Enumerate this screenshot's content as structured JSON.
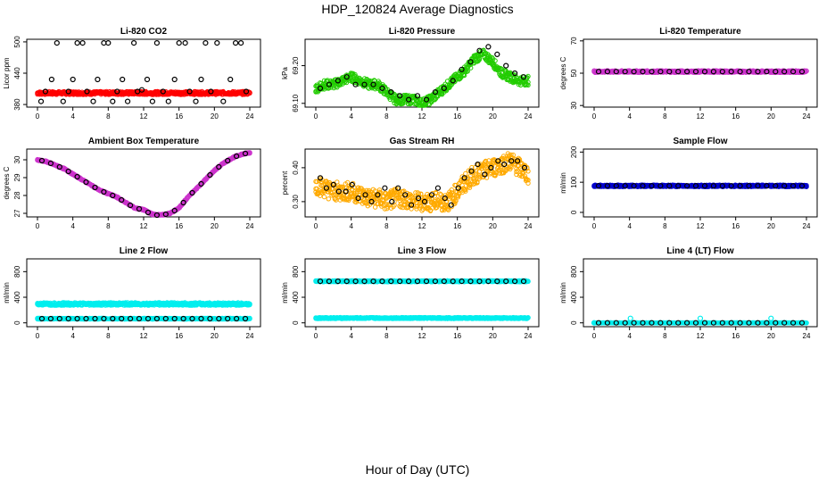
{
  "figure": {
    "title": "HDP_120824  Average Diagnostics",
    "xlabel": "Hour of Day (UTC)"
  },
  "colors": {
    "black": "#000000",
    "red": "#ff0000",
    "green": "#22cc00",
    "magenta": "#cc33cc",
    "orange": "#ffaa00",
    "blue": "#0000cc",
    "cyan": "#00eeee"
  },
  "chart_data": [
    {
      "type": "scatter",
      "title": "Li-820 CO2",
      "ylabel": "Licor ppm",
      "xlim": [
        0,
        24
      ],
      "ylim": [
        375,
        505
      ],
      "xticks": [
        "0",
        "4",
        "8",
        "12",
        "16",
        "20",
        "24"
      ],
      "yticks": [
        "380",
        "440",
        "500"
      ],
      "series": [
        {
          "name": "minute",
          "color_key": "red",
          "kind": "band",
          "x": [
            0,
            24
          ],
          "y": [
            402,
            402
          ],
          "spread": 3
        },
        {
          "name": "hourly",
          "color_key": "black",
          "kind": "points",
          "x": [
            0.4,
            0.9,
            1.6,
            2.2,
            2.9,
            3.5,
            4.0,
            4.5,
            5.1,
            5.6,
            6.3,
            6.8,
            7.5,
            8.0,
            8.5,
            9.0,
            9.6,
            10.2,
            10.9,
            11.3,
            11.8,
            12.4,
            13.0,
            13.5,
            14.2,
            14.8,
            15.5,
            16.0,
            16.7,
            17.2,
            17.9,
            18.5,
            19.0,
            19.6,
            20.3,
            21.0,
            21.8,
            22.4,
            23.0,
            23.6
          ],
          "y": [
            386,
            405,
            428,
            498,
            386,
            405,
            428,
            498,
            498,
            405,
            386,
            428,
            498,
            498,
            386,
            405,
            428,
            386,
            498,
            405,
            408,
            428,
            386,
            498,
            405,
            386,
            428,
            498,
            498,
            405,
            386,
            428,
            498,
            405,
            498,
            386,
            428,
            498,
            498,
            405
          ]
        }
      ]
    },
    {
      "type": "scatter",
      "title": "Li-820 Pressure",
      "ylabel": "kPa",
      "xlim": [
        0,
        24
      ],
      "ylim": [
        69.09,
        69.27
      ],
      "xticks": [
        "0",
        "4",
        "8",
        "12",
        "16",
        "20",
        "24"
      ],
      "yticks": [
        "69.10",
        "69.20"
      ],
      "series": [
        {
          "name": "minute",
          "color_key": "green",
          "kind": "band",
          "x": [
            0,
            1,
            2,
            3,
            4,
            5,
            6,
            7,
            8,
            9,
            10,
            11,
            12,
            13,
            14,
            15,
            16,
            17,
            18,
            19,
            20,
            21,
            22,
            23,
            24
          ],
          "y": [
            69.14,
            69.15,
            69.15,
            69.16,
            69.17,
            69.16,
            69.15,
            69.15,
            69.13,
            69.11,
            69.11,
            69.11,
            69.1,
            69.11,
            69.13,
            69.15,
            69.17,
            69.19,
            69.22,
            69.23,
            69.21,
            69.18,
            69.17,
            69.16,
            69.16
          ],
          "spread": 0.012
        },
        {
          "name": "hourly",
          "color_key": "black",
          "kind": "points",
          "x": [
            0.5,
            1.5,
            2.5,
            3.5,
            4.5,
            5.5,
            6.5,
            7.5,
            8.5,
            9.5,
            10.5,
            11.5,
            12.5,
            13.5,
            14.5,
            15.5,
            16.5,
            17.5,
            18.5,
            19.5,
            20.5,
            21.5,
            22.5,
            23.5
          ],
          "y": [
            69.14,
            69.15,
            69.16,
            69.17,
            69.15,
            69.15,
            69.15,
            69.14,
            69.13,
            69.12,
            69.11,
            69.12,
            69.11,
            69.13,
            69.14,
            69.16,
            69.19,
            69.21,
            69.24,
            69.25,
            69.23,
            69.2,
            69.18,
            69.17
          ]
        }
      ]
    },
    {
      "type": "scatter",
      "title": "Li-820 Temperature",
      "ylabel": "degrees C",
      "xlim": [
        0,
        24
      ],
      "ylim": [
        29,
        71
      ],
      "xticks": [
        "0",
        "4",
        "8",
        "12",
        "16",
        "20",
        "24"
      ],
      "yticks": [
        "30",
        "50",
        "70"
      ],
      "series": [
        {
          "name": "minute",
          "color_key": "magenta",
          "kind": "band",
          "x": [
            0,
            24
          ],
          "y": [
            51,
            51
          ],
          "spread": 0.6
        },
        {
          "name": "hourly",
          "color_key": "black",
          "kind": "points",
          "x": [
            0.5,
            1.5,
            2.5,
            3.5,
            4.5,
            5.5,
            6.5,
            7.5,
            8.5,
            9.5,
            10.5,
            11.5,
            12.5,
            13.5,
            14.5,
            15.5,
            16.5,
            17.5,
            18.5,
            19.5,
            20.5,
            21.5,
            22.5,
            23.5
          ],
          "y": [
            51,
            51,
            51,
            51,
            51,
            51,
            51,
            51,
            51,
            51,
            51,
            51,
            51,
            51,
            51,
            51,
            51,
            51,
            51,
            51,
            51,
            51,
            51,
            51
          ]
        }
      ]
    },
    {
      "type": "scatter",
      "title": "Ambient Box Temperature",
      "ylabel": "degrees C",
      "xlim": [
        0,
        24
      ],
      "ylim": [
        26.8,
        30.6
      ],
      "xticks": [
        "0",
        "4",
        "8",
        "12",
        "16",
        "20",
        "24"
      ],
      "yticks": [
        "27",
        "28",
        "29",
        "30"
      ],
      "series": [
        {
          "name": "minute",
          "color_key": "magenta",
          "kind": "band",
          "x": [
            0,
            1,
            2,
            3,
            4,
            5,
            6,
            7,
            8,
            9,
            10,
            11,
            12,
            13,
            14,
            15,
            16,
            17,
            18,
            19,
            20,
            21,
            22,
            23,
            24
          ],
          "y": [
            30.0,
            29.9,
            29.7,
            29.5,
            29.2,
            28.9,
            28.6,
            28.3,
            28.1,
            27.9,
            27.6,
            27.3,
            27.2,
            26.95,
            26.9,
            27.0,
            27.3,
            27.9,
            28.4,
            28.9,
            29.4,
            29.8,
            30.1,
            30.3,
            30.4
          ],
          "spread": 0.04
        },
        {
          "name": "hourly",
          "color_key": "black",
          "kind": "points",
          "x": [
            0.5,
            1.5,
            2.5,
            3.5,
            4.5,
            5.5,
            6.5,
            7.5,
            8.5,
            9.5,
            10.5,
            11.5,
            12.5,
            13.5,
            14.5,
            15.5,
            16.5,
            17.5,
            18.5,
            19.5,
            20.5,
            21.5,
            22.5,
            23.5
          ],
          "y": [
            29.95,
            29.8,
            29.6,
            29.35,
            29.05,
            28.75,
            28.45,
            28.2,
            28.0,
            27.75,
            27.45,
            27.25,
            27.05,
            26.9,
            26.95,
            27.15,
            27.6,
            28.15,
            28.65,
            29.15,
            29.6,
            29.95,
            30.2,
            30.35
          ]
        }
      ]
    },
    {
      "type": "scatter",
      "title": "Gas Stream RH",
      "ylabel": "percent",
      "xlim": [
        0,
        24
      ],
      "ylim": [
        0.255,
        0.455
      ],
      "xticks": [
        "0",
        "4",
        "8",
        "12",
        "16",
        "20",
        "24"
      ],
      "yticks": [
        "0.30",
        "0.40"
      ],
      "series": [
        {
          "name": "minute",
          "color_key": "orange",
          "kind": "band",
          "x": [
            0,
            1,
            2,
            3,
            4,
            5,
            6,
            7,
            8,
            9,
            10,
            11,
            12,
            13,
            14,
            15,
            16,
            17,
            18,
            19,
            20,
            21,
            22,
            23,
            24
          ],
          "y": [
            0.35,
            0.34,
            0.33,
            0.33,
            0.33,
            0.32,
            0.31,
            0.31,
            0.3,
            0.31,
            0.31,
            0.3,
            0.3,
            0.3,
            0.3,
            0.3,
            0.33,
            0.36,
            0.38,
            0.39,
            0.4,
            0.41,
            0.42,
            0.4,
            0.38
          ],
          "spread": 0.028
        },
        {
          "name": "hourly",
          "color_key": "black",
          "kind": "points",
          "x": [
            0.5,
            1.2,
            2.0,
            2.6,
            3.4,
            4.1,
            4.8,
            5.6,
            6.3,
            7.0,
            7.8,
            8.6,
            9.3,
            10.1,
            10.8,
            11.6,
            12.3,
            13.1,
            13.8,
            14.6,
            15.3,
            16.1,
            16.8,
            17.6,
            18.3,
            19.1,
            19.8,
            20.6,
            21.3,
            22.1,
            22.8,
            23.6
          ],
          "y": [
            0.37,
            0.34,
            0.35,
            0.33,
            0.33,
            0.35,
            0.31,
            0.32,
            0.3,
            0.32,
            0.34,
            0.3,
            0.34,
            0.32,
            0.29,
            0.31,
            0.3,
            0.32,
            0.34,
            0.31,
            0.29,
            0.34,
            0.37,
            0.39,
            0.41,
            0.38,
            0.4,
            0.42,
            0.41,
            0.42,
            0.42,
            0.4
          ]
        }
      ]
    },
    {
      "type": "scatter",
      "title": "Sample Flow",
      "ylabel": "ml/min",
      "xlim": [
        0,
        24
      ],
      "ylim": [
        -15,
        210
      ],
      "xticks": [
        "0",
        "4",
        "8",
        "12",
        "16",
        "20",
        "24"
      ],
      "yticks": [
        "0",
        "100",
        "200"
      ],
      "series": [
        {
          "name": "minute",
          "color_key": "blue",
          "kind": "band",
          "x": [
            0,
            24
          ],
          "y": [
            88,
            88
          ],
          "spread": 3
        },
        {
          "name": "hourly",
          "color_key": "black",
          "kind": "points",
          "x": [
            0.5,
            1.5,
            2.5,
            3.5,
            4.5,
            5.5,
            6.5,
            7.5,
            8.5,
            9.5,
            10.5,
            11.5,
            12.5,
            13.5,
            14.5,
            15.5,
            16.5,
            17.5,
            18.5,
            19.5,
            20.5,
            21.5,
            22.5,
            23.5
          ],
          "y": [
            88,
            88,
            88,
            88,
            88,
            88,
            88,
            88,
            88,
            88,
            88,
            88,
            88,
            88,
            88,
            88,
            88,
            88,
            88,
            88,
            88,
            88,
            88,
            88
          ]
        }
      ]
    },
    {
      "type": "scatter",
      "title": "Line 2 Flow",
      "ylabel": "ml/min",
      "xlim": [
        0,
        24
      ],
      "ylim": [
        -60,
        1000
      ],
      "xticks": [
        "0",
        "4",
        "8",
        "12",
        "16",
        "20",
        "24"
      ],
      "yticks": [
        "0",
        "400",
        "800"
      ],
      "series": [
        {
          "name": "minute",
          "color_key": "cyan",
          "kind": "band",
          "x": [
            0,
            24
          ],
          "y": [
            295,
            295
          ],
          "spread": 22
        },
        {
          "name": "minute-low",
          "color_key": "cyan",
          "kind": "band",
          "x": [
            0,
            24
          ],
          "y": [
            65,
            65
          ],
          "spread": 8
        },
        {
          "name": "hourly",
          "color_key": "black",
          "kind": "points",
          "x": [
            0.5,
            1.5,
            2.5,
            3.5,
            4.5,
            5.5,
            6.5,
            7.5,
            8.5,
            9.5,
            10.5,
            11.5,
            12.5,
            13.5,
            14.5,
            15.5,
            16.5,
            17.5,
            18.5,
            19.5,
            20.5,
            21.5,
            22.5,
            23.5
          ],
          "y": [
            65,
            65,
            65,
            65,
            65,
            65,
            65,
            65,
            65,
            65,
            65,
            65,
            65,
            65,
            65,
            65,
            65,
            65,
            65,
            65,
            65,
            65,
            65,
            65
          ]
        }
      ]
    },
    {
      "type": "scatter",
      "title": "Line 3 Flow",
      "ylabel": "ml/min",
      "xlim": [
        0,
        24
      ],
      "ylim": [
        -60,
        1000
      ],
      "xticks": [
        "0",
        "4",
        "8",
        "12",
        "16",
        "20",
        "24"
      ],
      "yticks": [
        "0",
        "400",
        "800"
      ],
      "series": [
        {
          "name": "minute-high",
          "color_key": "cyan",
          "kind": "band",
          "x": [
            0,
            24
          ],
          "y": [
            650,
            650
          ],
          "spread": 10
        },
        {
          "name": "minute-low",
          "color_key": "cyan",
          "kind": "band",
          "x": [
            0,
            24
          ],
          "y": [
            75,
            75
          ],
          "spread": 10
        },
        {
          "name": "hourly",
          "color_key": "black",
          "kind": "points",
          "x": [
            0.5,
            1.5,
            2.5,
            3.5,
            4.5,
            5.5,
            6.5,
            7.5,
            8.5,
            9.5,
            10.5,
            11.5,
            12.5,
            13.5,
            14.5,
            15.5,
            16.5,
            17.5,
            18.5,
            19.5,
            20.5,
            21.5,
            22.5,
            23.5
          ],
          "y": [
            650,
            650,
            650,
            650,
            650,
            650,
            650,
            650,
            650,
            650,
            650,
            650,
            650,
            650,
            650,
            650,
            650,
            650,
            650,
            650,
            650,
            650,
            650,
            650
          ]
        }
      ]
    },
    {
      "type": "scatter",
      "title": "Line 4 (LT) Flow",
      "ylabel": "ml/min",
      "xlim": [
        0,
        24
      ],
      "ylim": [
        -60,
        1000
      ],
      "xticks": [
        "0",
        "4",
        "8",
        "12",
        "16",
        "20",
        "24"
      ],
      "yticks": [
        "0",
        "400",
        "800"
      ],
      "series": [
        {
          "name": "spikes",
          "color_key": "cyan",
          "kind": "points",
          "x": [
            0.0,
            4.1,
            12.0,
            20.0
          ],
          "y": [
            0,
            70,
            70,
            70
          ]
        },
        {
          "name": "minute",
          "color_key": "cyan",
          "kind": "band",
          "x": [
            0,
            24
          ],
          "y": [
            0,
            0
          ],
          "spread": 3
        },
        {
          "name": "hourly",
          "color_key": "black",
          "kind": "points",
          "x": [
            0.5,
            1.5,
            2.5,
            3.5,
            4.5,
            5.5,
            6.5,
            7.5,
            8.5,
            9.5,
            10.5,
            11.5,
            12.5,
            13.5,
            14.5,
            15.5,
            16.5,
            17.5,
            18.5,
            19.5,
            20.5,
            21.5,
            22.5,
            23.5
          ],
          "y": [
            0,
            0,
            0,
            0,
            0,
            0,
            0,
            0,
            0,
            0,
            0,
            0,
            0,
            0,
            0,
            0,
            0,
            0,
            0,
            0,
            0,
            0,
            0,
            0
          ]
        }
      ]
    }
  ]
}
